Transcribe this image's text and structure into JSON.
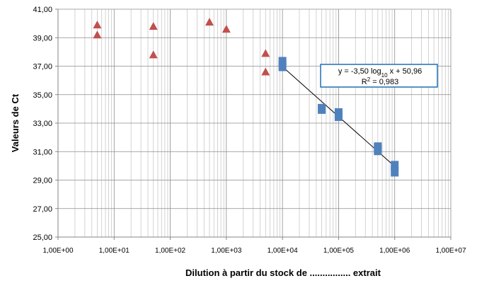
{
  "chart_data": {
    "type": "scatter",
    "xlabel": "Dilution à partir du stock de ................ extrait",
    "ylabel": "Valeurs de Ct",
    "xscale": "log",
    "grid": true,
    "xlim": [
      1,
      10000000
    ],
    "ylim": [
      25,
      41
    ],
    "xticks": [
      {
        "value": 1,
        "label": "1,00E+00"
      },
      {
        "value": 10,
        "label": "1,00E+01"
      },
      {
        "value": 100,
        "label": "1,00E+02"
      },
      {
        "value": 1000,
        "label": "1,00E+03"
      },
      {
        "value": 10000,
        "label": "1,00E+04"
      },
      {
        "value": 100000,
        "label": "1,00E+05"
      },
      {
        "value": 1000000,
        "label": "1,00E+06"
      },
      {
        "value": 10000000,
        "label": "1,00E+07"
      }
    ],
    "yticks": [
      {
        "value": 25,
        "label": "25,00"
      },
      {
        "value": 27,
        "label": "27,00"
      },
      {
        "value": 29,
        "label": "29,00"
      },
      {
        "value": 31,
        "label": "31,00"
      },
      {
        "value": 33,
        "label": "33,00"
      },
      {
        "value": 35,
        "label": "35,00"
      },
      {
        "value": 37,
        "label": "37,00"
      },
      {
        "value": 39,
        "label": "39,00"
      },
      {
        "value": 41,
        "label": "41,00"
      }
    ],
    "series": [
      {
        "marker": "triangle",
        "color": "#c0504d",
        "x": [
          5,
          5,
          50,
          50,
          500,
          1000,
          5000,
          5000
        ],
        "values": [
          39.9,
          39.2,
          39.8,
          37.8,
          40.1,
          39.6,
          37.9,
          36.6
        ]
      },
      {
        "marker": "square",
        "color": "#4f81bd",
        "x": [
          10000,
          10000,
          50000,
          100000,
          100000,
          500000,
          500000,
          1000000,
          1000000
        ],
        "values": [
          37.3,
          37.0,
          34.0,
          33.7,
          33.5,
          31.3,
          31.1,
          30.0,
          29.6
        ]
      }
    ],
    "trendline": {
      "series": 1,
      "slope": -3.5,
      "intercept": 50.96,
      "color": "#000000"
    },
    "annotation": {
      "equation": [
        "y = -3,50 log",
        "10",
        " x + 50,96"
      ],
      "r2": [
        "R",
        "2",
        " = 0,983"
      ]
    }
  }
}
